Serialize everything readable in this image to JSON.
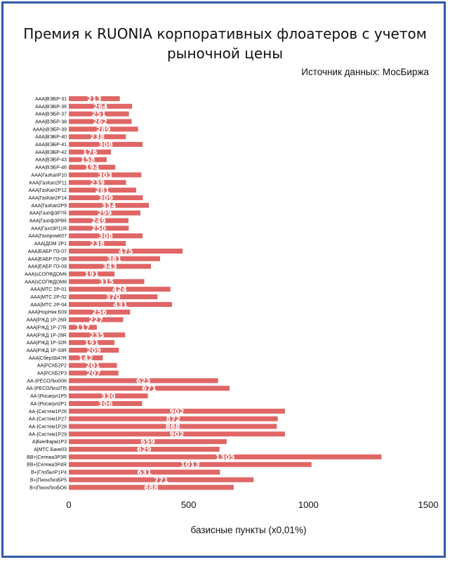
{
  "chart_data": {
    "type": "bar",
    "orientation": "horizontal",
    "title": "Премия к RUONIA корпоративных флоатеров с учетом рыночной цены",
    "subtitle": "Источник данных: МосБиржа",
    "xlabel": "базисные пункты (x0,01%)",
    "ylabel": "",
    "xlim": [
      0,
      1500
    ],
    "xticks": [
      0,
      500,
      1000,
      1500
    ],
    "grid": false,
    "legend": "none",
    "bar_color": "#e06666",
    "categories": [
      "AAA|ВЭБР-31",
      "AAA|ВЭБР-36",
      "AAA|ВЭБР-37",
      "AAA|ВЭБР-38",
      "AAA|sВЭБР-39",
      "AAA|ВЭБР-40",
      "AAA|ВЭБР-41",
      "AAA|ВЭБР-42",
      "AAA|ВЭБР-43",
      "AAA|ВЭБР-46",
      "AAA|ГазКапР10",
      "AAA|ГазКап2Р11",
      "AAA|ГазКап2Р12",
      "AAA|ГазКап2Р14",
      "AAA|ГазКап2Р9",
      "AAA|Газпф3Р7R",
      "AAA|Газпф3Р9R",
      "AAA|Газп3Р11R",
      "AAA|ГазпромК07",
      "AAA|ДОМ 2Р1",
      "AAA|ЕАБР П3-07",
      "AAA|ЕАБР П3-08",
      "AAA|ЕАБР П3-09",
      "AAA|sСОПФДОМ6",
      "AAA|sСОПФДОМ8",
      "AAA|МТС 2Р-01",
      "AAA|МТС 2Р-02",
      "AAA|МТС 2Р-04",
      "AAA|НорНик Б09",
      "AAA|РЖД 1Р-26R",
      "AAA|РЖД 1Р-27R",
      "AAA|РЖД 1Р-28R",
      "AAA|РЖД 1Р-32R",
      "AAA|РЖД 1Р-33R",
      "AAA|СберSb47R",
      "AA|РСХБ2Р2",
      "AA|РСХБ2Р3",
      "AA-|РЕСОЛиз506",
      "AA-|РЕСОЛиз2П5",
      "AA-|Росагрл1Р5",
      "AA-|Росагрл2Р1",
      "AA-|Систем1Р26",
      "AA-|Систем1Р27",
      "AA-|Систем1Р28",
      "AA-|Систем1Р29",
      "A|БинФарм1Р3",
      "A|МТС Банк03",
      "BB+|СегежаЗР3R",
      "BB+|СегежаЗР4R",
      "B+|ГлобалР1Р4",
      "B+|ПионЛизБР5",
      "B+|ПионЛизБО6"
    ],
    "values": [
      213,
      264,
      251,
      262,
      289,
      238,
      308,
      176,
      158,
      194,
      303,
      239,
      281,
      309,
      334,
      299,
      249,
      250,
      308,
      238,
      475,
      381,
      343,
      191,
      315,
      424,
      370,
      431,
      256,
      227,
      117,
      235,
      191,
      209,
      142,
      201,
      207,
      623,
      671,
      330,
      306,
      902,
      872,
      868,
      902,
      659,
      629,
      1305,
      1013,
      631,
      771,
      688
    ]
  }
}
